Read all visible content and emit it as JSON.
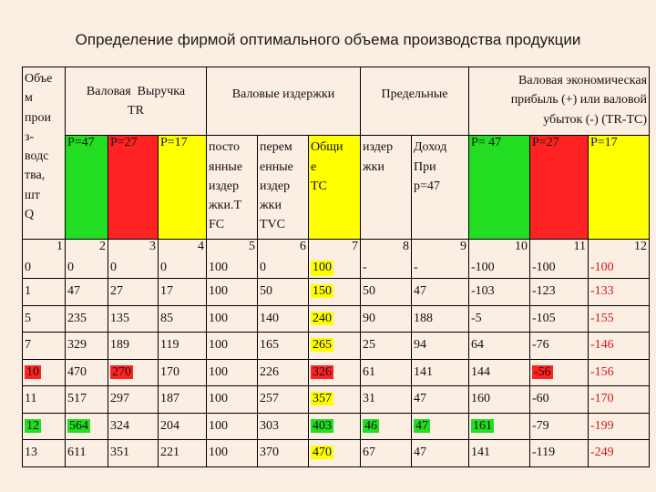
{
  "title": "Определение фирмой оптимального объема производства продукции",
  "header": {
    "volume": "Объе\nм\nпрои\nз-\nводс\nтва,\nшт\nQ",
    "tr_group": "Валовая  Выручка\nTR",
    "tc_group": "Валовые издержки",
    "mc_group": "Предельные",
    "profit_group": "Валовая экономическая\nприбыль (+) или валовой\nубыток (-) (TR-TC)",
    "tr_p47": "P=47",
    "tr_p27": "P=27",
    "tr_p17": "P=17",
    "fc": "посто\nянные\nиздер\nжки.Т\nFC",
    "tvc": "перем\nенные\nиздер\nжки\nTVC",
    "tc": "Общи\nе\nTC",
    "mc": "издер\nжки",
    "mr": "Доход\nПри\nр=47",
    "profit_p47": "P= 47",
    "profit_p27": "P=27",
    "profit_p17": "P=17"
  },
  "column_numbers": [
    "1",
    "2",
    "3",
    "4",
    "5",
    "6",
    "7",
    "8",
    "9",
    "10",
    "11",
    "12"
  ],
  "first_row_extra": "0",
  "rows": [
    [
      "0",
      "0",
      "0",
      "0",
      "100",
      "0",
      "100",
      "-",
      "-",
      "-100",
      "-100",
      "-100"
    ],
    [
      "1",
      "47",
      "27",
      "17",
      "100",
      "50",
      "150",
      "50",
      "47",
      "-103",
      "-123",
      "-133"
    ],
    [
      "5",
      "235",
      "135",
      "85",
      "100",
      "140",
      "240",
      "90",
      "188",
      "-5",
      "-105",
      "-155"
    ],
    [
      "7",
      "329",
      "189",
      "119",
      "100",
      "165",
      "265",
      "25",
      "94",
      "64",
      "-76",
      "-146"
    ],
    [
      "10",
      "470",
      "270",
      "170",
      "100",
      "226",
      "326",
      "61",
      "141",
      "144",
      "-56",
      "-156"
    ],
    [
      "11",
      "517",
      "297",
      "187",
      "100",
      "257",
      "357",
      "31",
      "47",
      "160",
      "-60",
      "-170"
    ],
    [
      "12",
      "564",
      "324",
      "204",
      "100",
      "303",
      "403",
      "46",
      "47",
      "161",
      "-79",
      "-199"
    ],
    [
      "13",
      "611",
      "351",
      "221",
      "100",
      "370",
      "470",
      "67",
      "47",
      "141",
      "-119",
      "-249"
    ]
  ],
  "colors": {
    "background": "#fbeee3",
    "red": "#ff2222",
    "yellow": "#ffff00",
    "green": "#22dd22",
    "red_text": "#d01818"
  }
}
